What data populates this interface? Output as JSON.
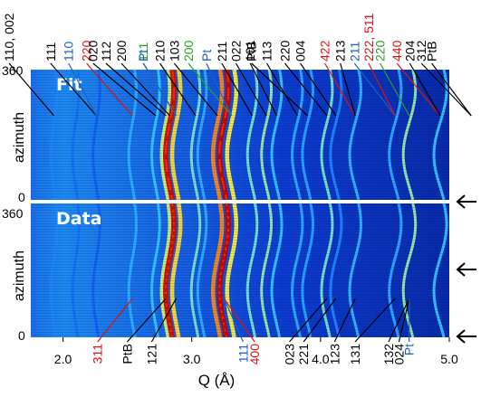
{
  "chart_data": {
    "type": "heatmap",
    "xlabel": "Q (Å)",
    "ylabel": "azimuth",
    "xlim": [
      1.75,
      5.0
    ],
    "x_ticks": [
      "2.0",
      "3.0",
      "4.0",
      "5.0"
    ],
    "x_tick_values": [
      2.0,
      3.0,
      4.0,
      5.0
    ],
    "panels": [
      {
        "label": "Fit",
        "y_ticks": [
          "360",
          "0"
        ],
        "ylim": [
          0,
          360
        ]
      },
      {
        "label": "Data",
        "y_ticks": [
          "360",
          "0"
        ],
        "ylim": [
          0,
          360
        ]
      }
    ],
    "colormap": [
      "#00008f",
      "#0030e0",
      "#1f8fff",
      "#3fe0ff",
      "#ffff40",
      "#ff5000",
      "#c00000"
    ],
    "rings": [
      {
        "q": 1.93,
        "intensity": 0.32
      },
      {
        "q": 2.1,
        "intensity": 0.28
      },
      {
        "q": 2.26,
        "intensity": 0.25
      },
      {
        "q": 2.54,
        "intensity": 0.4
      },
      {
        "q": 2.72,
        "intensity": 0.45
      },
      {
        "q": 2.8,
        "intensity": 0.62
      },
      {
        "q": 2.83,
        "intensity": 0.97
      },
      {
        "q": 2.88,
        "intensity": 0.7
      },
      {
        "q": 3.03,
        "intensity": 0.55
      },
      {
        "q": 3.08,
        "intensity": 0.4
      },
      {
        "q": 3.2,
        "intensity": 0.78
      },
      {
        "q": 3.25,
        "intensity": 0.99
      },
      {
        "q": 3.31,
        "intensity": 0.68
      },
      {
        "q": 3.47,
        "intensity": 0.55
      },
      {
        "q": 3.58,
        "intensity": 0.58
      },
      {
        "q": 3.66,
        "intensity": 0.45
      },
      {
        "q": 3.82,
        "intensity": 0.4
      },
      {
        "q": 3.9,
        "intensity": 0.38
      },
      {
        "q": 4.05,
        "intensity": 0.55
      },
      {
        "q": 4.12,
        "intensity": 0.32
      },
      {
        "q": 4.27,
        "intensity": 0.42
      },
      {
        "q": 4.58,
        "intensity": 0.4
      },
      {
        "q": 4.69,
        "intensity": 0.58
      },
      {
        "q": 4.93,
        "intensity": 0.45
      },
      {
        "q": 5.17,
        "intensity": 0.35
      }
    ],
    "top_annotations": [
      {
        "text": "110, 002",
        "color": "#000000",
        "q_label": 1.8,
        "q_peak": 1.93
      },
      {
        "text": "111",
        "color": "#000000",
        "q_label": 2.22,
        "q_peak": 2.26
      },
      {
        "text": "110",
        "color": "#1f5fbf",
        "q_label": 2.36,
        "q_peak": 2.26
      },
      {
        "text": "220",
        "color": "#e01010",
        "q_label": 2.5,
        "q_peak": 2.54
      },
      {
        "text": "020",
        "color": "#000000",
        "q_label": 2.55,
        "q_peak": 2.72
      },
      {
        "text": "112",
        "color": "#000000",
        "q_label": 2.65,
        "q_peak": 2.8
      },
      {
        "text": "200",
        "color": "#000000",
        "q_label": 2.77,
        "q_peak": 2.83
      },
      {
        "text": "111",
        "color": "#2aa02a",
        "q_label": 2.94,
        "q_peak": 2.88
      },
      {
        "text": "Pt",
        "color": "#1f5fbf",
        "q_label": 2.94,
        "q_peak": 2.88
      },
      {
        "text": "210",
        "color": "#000000",
        "q_label": 3.07,
        "q_peak": 3.03
      },
      {
        "text": "103",
        "color": "#000000",
        "q_label": 3.18,
        "q_peak": 3.2
      },
      {
        "text": "200",
        "color": "#2aa02a",
        "q_label": 3.29,
        "q_peak": 3.31
      },
      {
        "text": "Pt",
        "color": "#1f5fbf",
        "q_label": 3.43,
        "q_peak": 3.31
      },
      {
        "text": "211",
        "color": "#000000",
        "q_label": 3.55,
        "q_peak": 3.47
      },
      {
        "text": "022",
        "color": "#000000",
        "q_label": 3.66,
        "q_peak": 3.58
      },
      {
        "text": "101",
        "color": "#000000",
        "q_label": 3.77,
        "q_peak": 3.66
      },
      {
        "text": "113",
        "color": "#000000",
        "q_label": 3.9,
        "q_peak": 3.82
      },
      {
        "text": "PtB",
        "color": "#000000",
        "q_label": 3.78,
        "q_peak": 3.9
      },
      {
        "text": "220",
        "color": "#000000",
        "q_label": 4.04,
        "q_peak": 4.05
      },
      {
        "text": "004",
        "color": "#000000",
        "q_label": 4.16,
        "q_peak": 4.12
      },
      {
        "text": "422",
        "color": "#e01010",
        "q_label": 4.35,
        "q_peak": 4.27
      },
      {
        "text": "213",
        "color": "#000000",
        "q_label": 4.47,
        "q_peak": 4.27
      },
      {
        "text": "211",
        "color": "#1f5fbf",
        "q_label": 4.58,
        "q_peak": 4.58
      },
      {
        "text": "222, 511",
        "color": "#e01010",
        "q_label": 4.69,
        "q_peak": 4.58
      },
      {
        "text": "220",
        "color": "#2aa02a",
        "q_label": 4.78,
        "q_peak": 4.69
      },
      {
        "text": "440",
        "color": "#e01010",
        "q_label": 4.91,
        "q_peak": 4.93
      },
      {
        "text": "204",
        "color": "#000000",
        "q_label": 5.01,
        "q_peak": 4.93
      },
      {
        "text": "312",
        "color": "#000000",
        "q_label": 5.1,
        "q_peak": 5.17
      },
      {
        "text": "PtB",
        "color": "#000000",
        "q_label": 5.18,
        "q_peak": 5.17
      }
    ],
    "bottom_annotations": [
      {
        "text": "311",
        "color": "#e01010",
        "q_label": 2.55,
        "q_peak": 2.54
      },
      {
        "text": "PtB",
        "color": "#000000",
        "q_label": 2.78,
        "q_peak": 2.8
      },
      {
        "text": "121",
        "color": "#000000",
        "q_label": 2.97,
        "q_peak": 2.88
      },
      {
        "text": "111",
        "color": "#1f5fbf",
        "q_label": 3.68,
        "q_peak": 3.25
      },
      {
        "text": "400",
        "color": "#e01010",
        "q_label": 3.77,
        "q_peak": 3.25
      },
      {
        "text": "023",
        "color": "#000000",
        "q_label": 4.04,
        "q_peak": 4.05
      },
      {
        "text": "221",
        "color": "#000000",
        "q_label": 4.15,
        "q_peak": 4.12
      },
      {
        "text": "123",
        "color": "#000000",
        "q_label": 4.39,
        "q_peak": 4.27
      },
      {
        "text": "131",
        "color": "#000000",
        "q_label": 4.55,
        "q_peak": 4.58
      },
      {
        "text": "132",
        "color": "#000000",
        "q_label": 4.81,
        "q_peak": 4.69
      },
      {
        "text": "024",
        "color": "#000000",
        "q_label": 4.89,
        "q_peak": 4.69
      },
      {
        "text": "Pt",
        "color": "#1f5fbf",
        "q_label": 4.97,
        "q_peak": 4.69
      }
    ],
    "arrows": [
      "fit-data-boundary",
      "data-mid",
      "data-bottom"
    ]
  }
}
